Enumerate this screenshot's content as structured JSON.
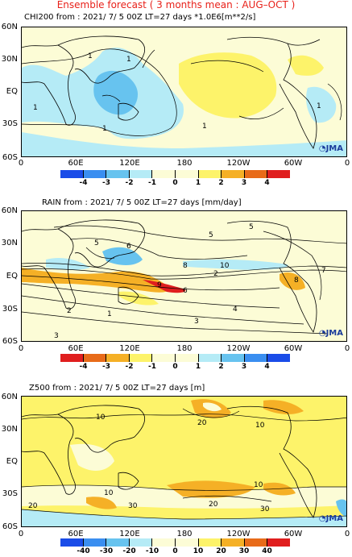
{
  "header": "Ensemble forecast ( 3 months mean : AUG–OCT )",
  "lat_labels": [
    "60N",
    "30N",
    "EQ",
    "30S",
    "60S"
  ],
  "lon_labels": [
    "0",
    "60E",
    "120E",
    "180",
    "120W",
    "60W",
    "0"
  ],
  "logo": "JMA",
  "panels": [
    {
      "title": "CHI200  from : 2021/ 7/ 5 00Z LT=27 days   *1.0E6[m**2/s]",
      "colorbar": {
        "ticks": [
          "-4",
          "-3",
          "-2",
          "-1",
          "0",
          "1",
          "2",
          "3",
          "4"
        ],
        "colors": [
          "#1a4ce8",
          "#3a8ef0",
          "#67c3ef",
          "#b5ebf6",
          "#fcfcd6",
          "#fdf36a",
          "#f5b026",
          "#e86b19",
          "#e01e1e"
        ]
      },
      "contour_labels": [
        "1",
        "1",
        "1",
        "1",
        "1",
        "1"
      ]
    },
    {
      "title": "RAIN   from : 2021/ 7/ 5 00Z LT=27 days   [mm/day]",
      "colorbar": {
        "ticks": [
          "-4",
          "-3",
          "-2",
          "-1",
          "0",
          "1",
          "2",
          "3",
          "4"
        ],
        "colors": [
          "#e01e1e",
          "#e86b19",
          "#f5b026",
          "#fdf36a",
          "#fcfcd6",
          "#b5ebf6",
          "#67c3ef",
          "#3a8ef0",
          "#1a4ce8"
        ]
      },
      "contour_labels": [
        "5",
        "5",
        "8",
        "10",
        "6",
        "2",
        "4",
        "3",
        "2",
        "1",
        "3",
        "5",
        "7",
        "9",
        "6",
        "8"
      ]
    },
    {
      "title": "Z500   from : 2021/ 7/ 5 00Z LT=27 days   [m]",
      "colorbar": {
        "ticks": [
          "-40",
          "-30",
          "-20",
          "-10",
          "0",
          "10",
          "20",
          "30",
          "40"
        ],
        "colors": [
          "#1a4ce8",
          "#3a8ef0",
          "#67c3ef",
          "#b5ebf6",
          "#fcfcd6",
          "#fdf36a",
          "#f5b026",
          "#e86b19",
          "#e01e1e"
        ]
      },
      "contour_labels": [
        "10",
        "20",
        "10",
        "10",
        "20",
        "30",
        "10",
        "20",
        "30"
      ]
    }
  ]
}
